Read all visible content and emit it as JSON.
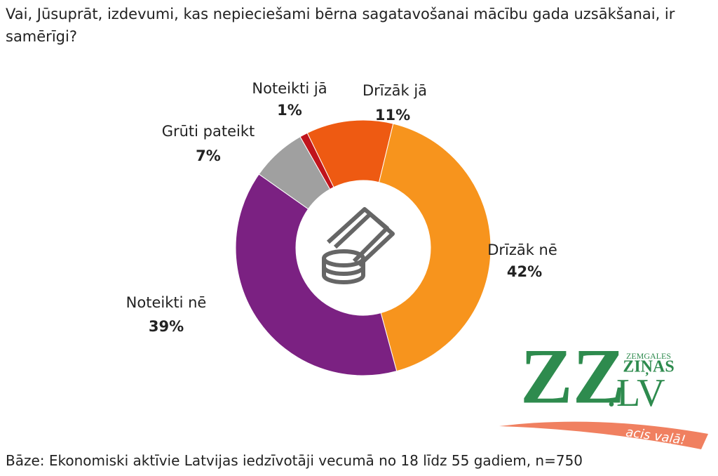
{
  "chart_data": {
    "type": "donut",
    "title": "Vai, Jūsuprāt, izdevumi, kas nepieciešami bērna sagatavošanai mācību gada uzsākšanai, ir samērīgi?",
    "categories": [
      "Drīzāk jā",
      "Drīzāk nē",
      "Noteikti nē",
      "Grūti pateikt",
      "Noteikti jā"
    ],
    "values": [
      11,
      42,
      39,
      7,
      1
    ],
    "value_labels": [
      "11%",
      "42%",
      "39%",
      "7%",
      "1%"
    ],
    "colors": [
      "#ee5a12",
      "#f7941d",
      "#7b2182",
      "#a0a0a0",
      "#c0141c"
    ],
    "footnote": "Bāze: Ekonomiski aktīvie Latvijas iedzīvotāji vecumā no 18 līdz 55 gadiem, n=750"
  },
  "logo": {
    "mark": "ZZ",
    "domain": ".LV",
    "name_top": "ZEMGALES",
    "name_bottom": "ZIŅAS",
    "slogan": "acis vaļā!"
  }
}
